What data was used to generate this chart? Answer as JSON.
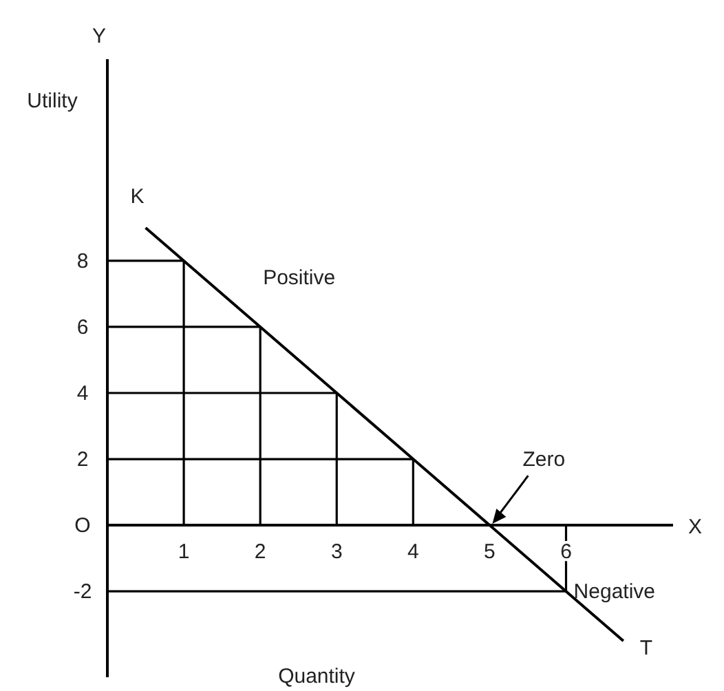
{
  "chart_data": {
    "type": "line",
    "xlabel": "Quantity",
    "ylabel": "Utility",
    "series": [
      {
        "color": "#000000",
        "x": [
          0.5,
          1,
          2,
          3,
          4,
          5,
          6,
          6.75
        ],
        "values": [
          9,
          8,
          6,
          4,
          2,
          0,
          -2,
          -3.5
        ]
      },
      {
        "color": "#000000",
        "x": [
          0,
          1,
          1
        ],
        "values": [
          8,
          8,
          0
        ]
      },
      {
        "color": "#000000",
        "x": [
          0,
          2,
          2
        ],
        "values": [
          6,
          6,
          0
        ]
      },
      {
        "color": "#000000",
        "x": [
          0,
          3,
          3
        ],
        "values": [
          4,
          4,
          0
        ]
      },
      {
        "color": "#000000",
        "x": [
          0,
          4,
          4
        ],
        "values": [
          2,
          2,
          0
        ]
      },
      {
        "color": "#000000",
        "x": [
          0,
          6,
          6
        ],
        "values": [
          -2,
          -2,
          0
        ]
      }
    ],
    "xlim": [
      0,
      7.4
    ],
    "ylim": [
      -4.6,
      14.1
    ],
    "xticks": [
      1,
      2,
      3,
      4,
      5,
      6
    ],
    "yticks": [
      -2,
      {
        "value": 0,
        "label": "O"
      },
      2,
      4,
      6,
      8
    ],
    "annotations": [
      "Y",
      "X",
      {
        "text": "K",
        "x": 0.5,
        "y": 9
      },
      {
        "text": "T",
        "x": 6.75,
        "y": -3.5
      },
      "Positive",
      {
        "text": "Zero",
        "x": 5,
        "y": 0
      },
      "Negative"
    ]
  }
}
